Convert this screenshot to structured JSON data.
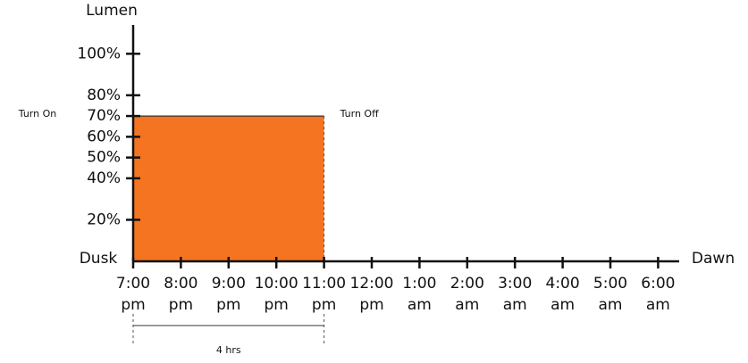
{
  "chart_data": {
    "type": "area",
    "y_axis_label": "Lumen",
    "origin_label": "Dusk",
    "end_label": "Dawn",
    "annotations": {
      "turn_on": "Turn On",
      "turn_off": "Turn Off",
      "duration": "4 hrs"
    },
    "categories": [
      "7:00 pm",
      "8:00 pm",
      "9:00 pm",
      "10:00 pm",
      "11:00 pm",
      "12:00 pm",
      "1:00 am",
      "2:00 am",
      "3:00 am",
      "4:00 am",
      "5:00 am",
      "6:00 am"
    ],
    "values": [
      70,
      70,
      70,
      70,
      70,
      null,
      null,
      null,
      null,
      null,
      null,
      null
    ],
    "color": "#f47421",
    "ylim": [
      0,
      110
    ],
    "yticks": [
      {
        "value": 20,
        "label": "20%"
      },
      {
        "value": 40,
        "label": "40%"
      },
      {
        "value": 50,
        "label": "50%"
      },
      {
        "value": 60,
        "label": "60%"
      },
      {
        "value": 70,
        "label": "70%"
      },
      {
        "value": 80,
        "label": "80%"
      },
      {
        "value": 100,
        "label": "100%"
      }
    ]
  }
}
